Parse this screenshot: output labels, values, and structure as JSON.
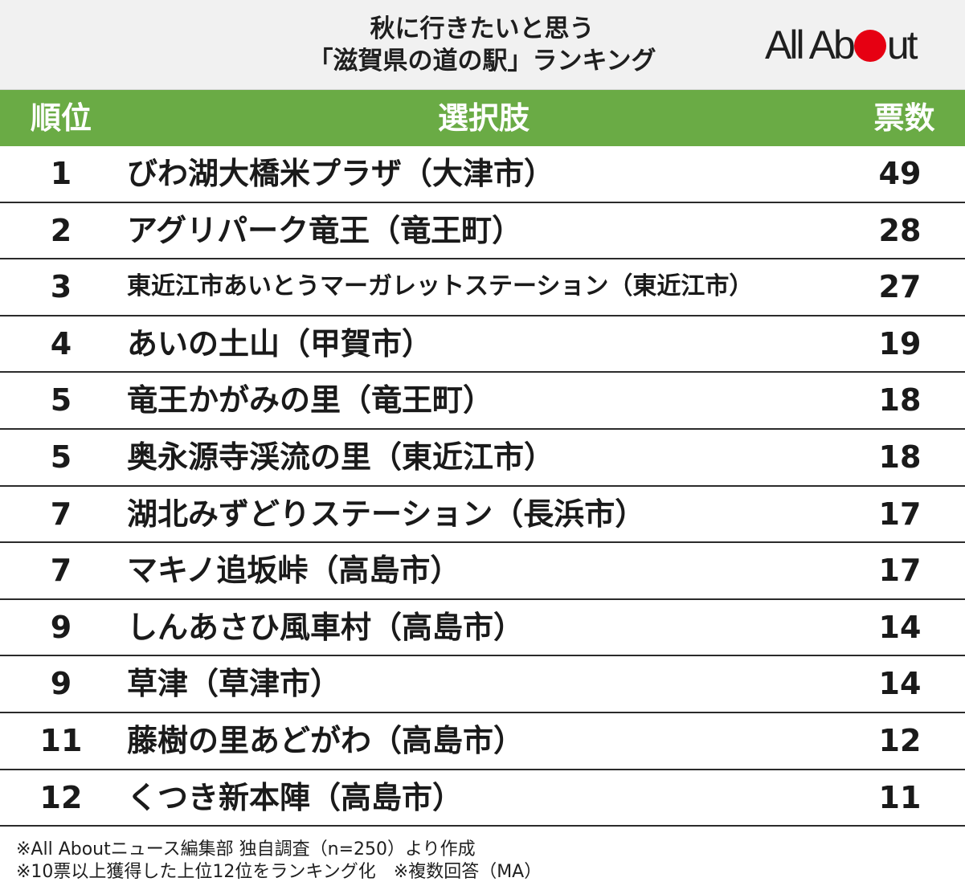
{
  "header": {
    "title_line1": "秋に行きたいと思う",
    "title_line2": "「滋賀県の道の駅」ランキング",
    "logo_left": "All Ab",
    "logo_right": "ut"
  },
  "columns": {
    "rank": "順位",
    "choice": "選択肢",
    "votes": "票数"
  },
  "colors": {
    "header_green": "#6aab45",
    "logo_red": "#e60012"
  },
  "chart_data": {
    "type": "table",
    "title": "秋に行きたいと思う「滋賀県の道の駅」ランキング",
    "columns": [
      "順位",
      "選択肢",
      "票数"
    ],
    "rows": [
      {
        "rank": "1",
        "choice": "びわ湖大橋米プラザ（大津市）",
        "votes": 49
      },
      {
        "rank": "2",
        "choice": "アグリパーク竜王（竜王町）",
        "votes": 28
      },
      {
        "rank": "3",
        "choice": "東近江市あいとうマーガレットステーション（東近江市）",
        "votes": 27
      },
      {
        "rank": "4",
        "choice": "あいの土山（甲賀市）",
        "votes": 19
      },
      {
        "rank": "5",
        "choice": "竜王かがみの里（竜王町）",
        "votes": 18
      },
      {
        "rank": "5",
        "choice": "奥永源寺渓流の里（東近江市）",
        "votes": 18
      },
      {
        "rank": "7",
        "choice": "湖北みずどりステーション（長浜市）",
        "votes": 17
      },
      {
        "rank": "7",
        "choice": "マキノ追坂峠（高島市）",
        "votes": 17
      },
      {
        "rank": "9",
        "choice": "しんあさひ風車村（高島市）",
        "votes": 14
      },
      {
        "rank": "9",
        "choice": "草津（草津市）",
        "votes": 14
      },
      {
        "rank": "11",
        "choice": "藤樹の里あどがわ（高島市）",
        "votes": 12
      },
      {
        "rank": "12",
        "choice": "くつき新本陣（高島市）",
        "votes": 11
      }
    ]
  },
  "footer": {
    "note1": "※All Aboutニュース編集部 独自調査（n=250）より作成",
    "note2": "※10票以上獲得した上位12位をランキング化　※複数回答（MA）"
  }
}
